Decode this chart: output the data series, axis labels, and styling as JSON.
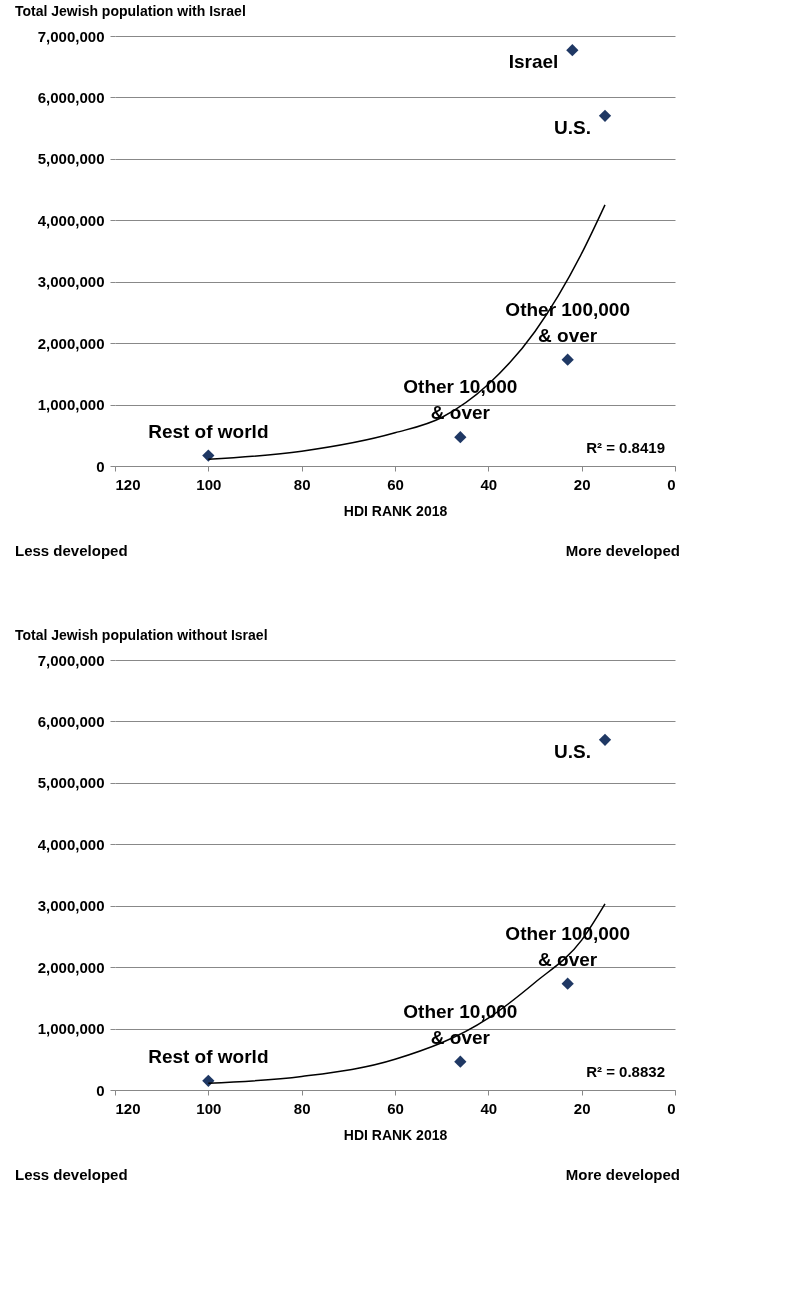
{
  "chart_data": [
    {
      "type": "scatter",
      "title": "Total Jewish population with Israel",
      "xlabel": "HDI RANK 2018",
      "xlim": [
        120,
        0
      ],
      "xticks": [
        120,
        100,
        80,
        60,
        40,
        20,
        0
      ],
      "ylim": [
        0,
        7000000
      ],
      "yticks": [
        0,
        {
          "value": 1000000,
          "label": "1,000,000"
        },
        {
          "value": 2000000,
          "label": "2,000,000"
        },
        {
          "value": 3000000,
          "label": "3,000,000"
        },
        {
          "value": 4000000,
          "label": "4,000,000"
        },
        {
          "value": 5000000,
          "label": "5,000,000"
        },
        {
          "value": 6000000,
          "label": "6,000,000"
        },
        {
          "value": 7000000,
          "label": "7,000,000"
        }
      ],
      "grid": "y",
      "marker": "diamond",
      "series": [
        {
          "type": "scatter",
          "color": "#1f3864",
          "x": [
            100,
            46,
            23,
            22,
            15
          ],
          "values": [
            170000,
            470000,
            1730000,
            6770000,
            5700000
          ]
        },
        {
          "type": "line",
          "color": "#000000",
          "line_style": "solid",
          "marker": "none",
          "x": [
            100,
            80,
            60,
            50,
            40,
            30,
            20,
            15
          ],
          "values": [
            110000,
            240000,
            540000,
            790000,
            1330000,
            2190000,
            3460000,
            4250000
          ]
        }
      ],
      "annotations": [
        {
          "text": "Israel",
          "x": 22,
          "y": 6770000
        },
        {
          "text": "U.S.",
          "x": 15,
          "y": 5700000
        },
        {
          "text": "Other 100,000\n& over",
          "x": 23,
          "y": 1730000
        },
        {
          "text": "Other 10,000\n& over",
          "x": 46,
          "y": 470000
        },
        {
          "text": "Rest of world",
          "x": 100,
          "y": 170000
        },
        "R² = 0.8419",
        "Less developed",
        "More developed"
      ]
    },
    {
      "type": "scatter",
      "title": "Total Jewish population without Israel",
      "xlabel": "HDI RANK 2018",
      "xlim": [
        120,
        0
      ],
      "xticks": [
        120,
        100,
        80,
        60,
        40,
        20,
        0
      ],
      "ylim": [
        0,
        7000000
      ],
      "yticks": [
        0,
        {
          "value": 1000000,
          "label": "1,000,000"
        },
        {
          "value": 2000000,
          "label": "2,000,000"
        },
        {
          "value": 3000000,
          "label": "3,000,000"
        },
        {
          "value": 4000000,
          "label": "4,000,000"
        },
        {
          "value": 5000000,
          "label": "5,000,000"
        },
        {
          "value": 6000000,
          "label": "6,000,000"
        },
        {
          "value": 7000000,
          "label": "7,000,000"
        }
      ],
      "grid": "y",
      "marker": "diamond",
      "series": [
        {
          "type": "scatter",
          "color": "#1f3864",
          "x": [
            100,
            46,
            23,
            15
          ],
          "values": [
            150000,
            460000,
            1730000,
            5700000
          ]
        },
        {
          "type": "line",
          "color": "#000000",
          "line_style": "solid",
          "marker": "none",
          "x": [
            100,
            80,
            60,
            40,
            30,
            20,
            15
          ],
          "values": [
            110000,
            220000,
            500000,
            1170000,
            1750000,
            2440000,
            3030000
          ]
        }
      ],
      "annotations": [
        {
          "text": "U.S.",
          "x": 15,
          "y": 5700000
        },
        {
          "text": "Other 100,000\n& over",
          "x": 23,
          "y": 1730000
        },
        {
          "text": "Other 10,000\n& over",
          "x": 46,
          "y": 460000
        },
        {
          "text": "Rest of world",
          "x": 100,
          "y": 150000
        },
        "R² = 0.8832",
        "Less developed",
        "More developed"
      ]
    }
  ]
}
